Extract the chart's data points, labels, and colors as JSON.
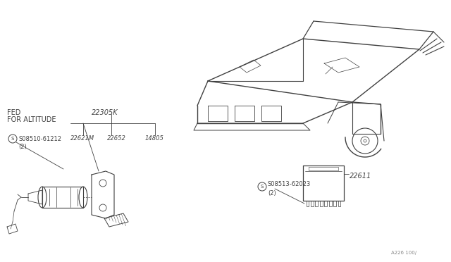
{
  "bg_color": "#ffffff",
  "line_color": "#404040",
  "text_color": "#404040",
  "labels": {
    "fed_altitude": "FED\nFOR ALTITUDE",
    "part_22305K": "22305K",
    "part_08510": "©08510-61212\n（2）",
    "part_08510_plain": "S08510-61212",
    "part_08510_qty": "(2)",
    "part_22621M": "22621M",
    "part_22652": "22652",
    "part_14805": "14805",
    "part_08513": "S08513-62023",
    "part_08513_qty": "(2)",
    "part_22611": "22611",
    "diagram_code": "A226 100/"
  },
  "font_size_label": 7.0,
  "font_size_small": 6.0,
  "font_size_tiny": 5.0
}
